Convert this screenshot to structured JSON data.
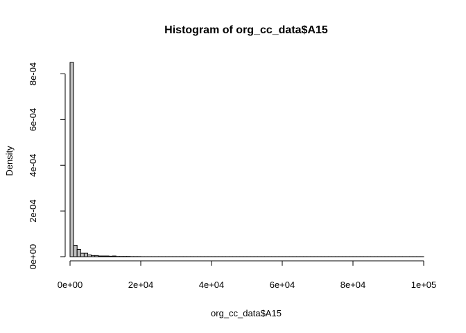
{
  "chart_data": {
    "type": "bar",
    "title": "Histogram of org_cc_data$A15",
    "xlabel": "org_cc_data$A15",
    "ylabel": "Density",
    "xlim": [
      0,
      100000
    ],
    "ylim": [
      0,
      0.00085
    ],
    "x_ticks": [
      {
        "value": 0,
        "label": "0e+00"
      },
      {
        "value": 20000,
        "label": "2e+04"
      },
      {
        "value": 40000,
        "label": "4e+04"
      },
      {
        "value": 60000,
        "label": "6e+04"
      },
      {
        "value": 80000,
        "label": "8e+04"
      },
      {
        "value": 100000,
        "label": "1e+05"
      }
    ],
    "y_ticks": [
      {
        "value": 0,
        "label": "0e+00"
      },
      {
        "value": 0.0002,
        "label": "2e-04"
      },
      {
        "value": 0.0004,
        "label": "4e-04"
      },
      {
        "value": 0.0006,
        "label": "6e-04"
      },
      {
        "value": 0.0008,
        "label": "8e-04"
      }
    ],
    "bin_width": 1000,
    "bins": [
      {
        "x0": 0,
        "x1": 1000,
        "value": 0.00085
      },
      {
        "x0": 1000,
        "x1": 2000,
        "value": 5e-05
      },
      {
        "x0": 2000,
        "x1": 3000,
        "value": 3.2e-05
      },
      {
        "x0": 3000,
        "x1": 4000,
        "value": 1.5e-05
      },
      {
        "x0": 4000,
        "x1": 5000,
        "value": 1.5e-05
      },
      {
        "x0": 5000,
        "x1": 6000,
        "value": 8e-06
      },
      {
        "x0": 6000,
        "x1": 7000,
        "value": 5e-06
      },
      {
        "x0": 7000,
        "x1": 8000,
        "value": 5e-06
      },
      {
        "x0": 8000,
        "x1": 9000,
        "value": 3e-06
      },
      {
        "x0": 9000,
        "x1": 10000,
        "value": 3e-06
      },
      {
        "x0": 10000,
        "x1": 11000,
        "value": 3e-06
      },
      {
        "x0": 11000,
        "x1": 12000,
        "value": 2e-06
      },
      {
        "x0": 12000,
        "x1": 13000,
        "value": 3e-06
      },
      {
        "x0": 13000,
        "x1": 14000,
        "value": 1e-06
      },
      {
        "x0": 14000,
        "x1": 15000,
        "value": 1e-06
      },
      {
        "x0": 15000,
        "x1": 16000,
        "value": 1e-06
      },
      {
        "x0": 16000,
        "x1": 17000,
        "value": 1e-06
      },
      {
        "x0": 17000,
        "x1": 18000,
        "value": 5e-07
      },
      {
        "x0": 18000,
        "x1": 19000,
        "value": 5e-07
      },
      {
        "x0": 19000,
        "x1": 20000,
        "value": 5e-07
      },
      {
        "x0": 20000,
        "x1": 100000,
        "value": 2e-07
      }
    ]
  }
}
